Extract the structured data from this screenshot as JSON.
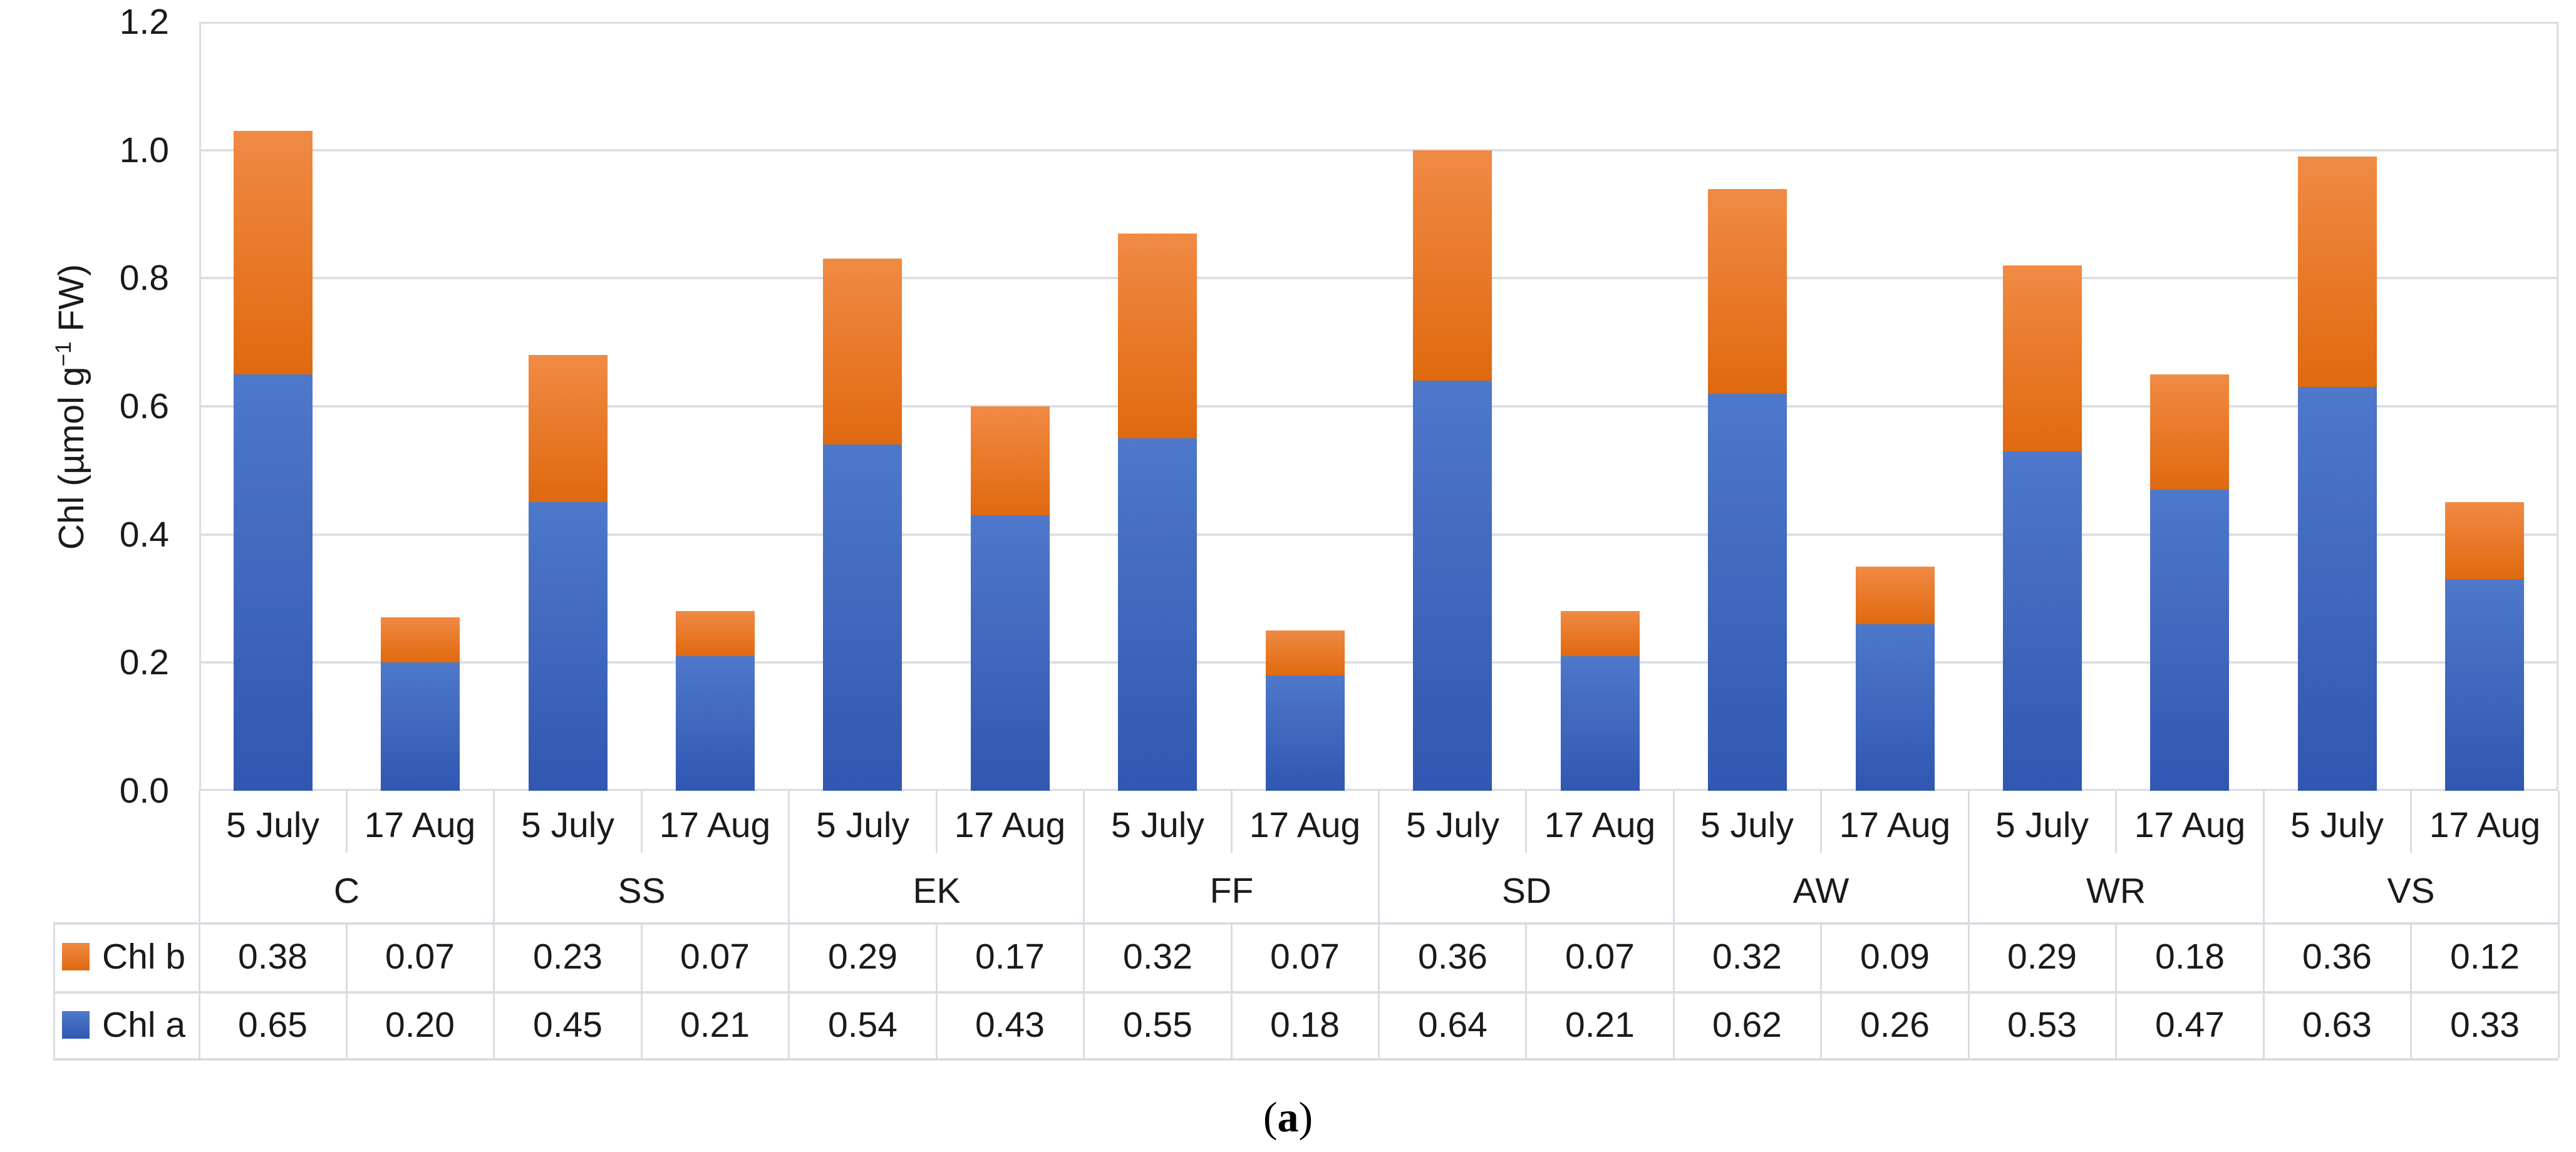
{
  "figure": {
    "caption_open": "(",
    "caption_letter": "a",
    "caption_close": ")"
  },
  "y_axis": {
    "title_pre": "Chl (µmol g",
    "title_sup": "−1",
    "title_post": " FW)",
    "tick_labels": [
      "1.2",
      "1.0",
      "0.8",
      "0.6",
      "0.4",
      "0.2",
      "0.0"
    ]
  },
  "chart_data": {
    "type": "bar",
    "stacked": true,
    "title": "",
    "xlabel": "",
    "ylabel": "Chl (µmol g−1 FW)",
    "ylim": [
      0,
      1.2
    ],
    "ytick_step": 0.2,
    "grid": true,
    "legend_position": "table-rows-left",
    "groups": [
      "C",
      "SS",
      "EK",
      "FF",
      "SD",
      "AW",
      "WR",
      "VS"
    ],
    "dates_per_group": [
      "5 July",
      "17 Aug"
    ],
    "stack_order_bottom_to_top": [
      "Chl a",
      "Chl b"
    ],
    "series": [
      {
        "name": "Chl b",
        "color": "#ED7D31",
        "gradient_top": "#F08A44",
        "gradient_bottom": "#E0690F",
        "values": [
          0.38,
          0.07,
          0.23,
          0.07,
          0.29,
          0.17,
          0.32,
          0.07,
          0.36,
          0.07,
          0.32,
          0.09,
          0.29,
          0.18,
          0.36,
          0.12
        ]
      },
      {
        "name": "Chl a",
        "color": "#4472C4",
        "gradient_top": "#4E78CA",
        "gradient_bottom": "#3057B1",
        "values": [
          0.65,
          0.2,
          0.45,
          0.21,
          0.54,
          0.43,
          0.55,
          0.18,
          0.64,
          0.21,
          0.62,
          0.26,
          0.53,
          0.47,
          0.63,
          0.33
        ]
      }
    ]
  },
  "colors": {
    "grid": "#DCE0E6",
    "frame": "#D9DDE2",
    "table_border": "#D9DDE2",
    "text": "#1A1A1A",
    "background": "#FFFFFF"
  }
}
